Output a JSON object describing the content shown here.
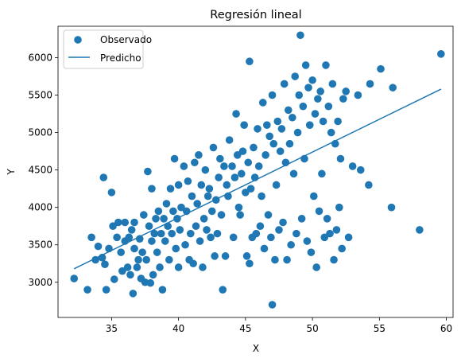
{
  "chart_data": {
    "type": "scatter",
    "title": "Regresión lineal",
    "xlabel": "X",
    "ylabel": "Y",
    "xlim": [
      31.0,
      60.5
    ],
    "ylim": [
      2530,
      6420
    ],
    "xticks": [
      35,
      40,
      45,
      50,
      55,
      60
    ],
    "yticks": [
      3000,
      3500,
      4000,
      4500,
      5000,
      5500,
      6000
    ],
    "grid": false,
    "legend_placement": "top-left",
    "colors": {
      "series": "#1f77b4"
    },
    "series": [
      {
        "name": "Observado",
        "type": "scatter",
        "points": [
          [
            32.2,
            3050
          ],
          [
            33.2,
            2900
          ],
          [
            33.5,
            3600
          ],
          [
            33.8,
            3300
          ],
          [
            34.0,
            3480
          ],
          [
            34.3,
            3330
          ],
          [
            34.5,
            3240
          ],
          [
            34.4,
            4400
          ],
          [
            34.6,
            2900
          ],
          [
            34.8,
            3450
          ],
          [
            35.0,
            4200
          ],
          [
            35.1,
            3750
          ],
          [
            35.2,
            3040
          ],
          [
            35.4,
            3600
          ],
          [
            35.5,
            3800
          ],
          [
            35.7,
            3400
          ],
          [
            35.8,
            3150
          ],
          [
            36.0,
            3550
          ],
          [
            36.0,
            3800
          ],
          [
            36.2,
            3200
          ],
          [
            36.3,
            3600
          ],
          [
            36.4,
            3100
          ],
          [
            36.5,
            3700
          ],
          [
            36.6,
            2850
          ],
          [
            36.7,
            3450
          ],
          [
            36.7,
            3800
          ],
          [
            36.9,
            3200
          ],
          [
            37.0,
            3300
          ],
          [
            37.1,
            3580
          ],
          [
            37.2,
            3050
          ],
          [
            37.3,
            3400
          ],
          [
            37.4,
            3900
          ],
          [
            37.5,
            3000
          ],
          [
            37.6,
            3300
          ],
          [
            37.7,
            4480
          ],
          [
            37.8,
            3750
          ],
          [
            37.9,
            2990
          ],
          [
            38.0,
            3550
          ],
          [
            38.0,
            4250
          ],
          [
            38.1,
            3100
          ],
          [
            38.2,
            3650
          ],
          [
            38.3,
            3850
          ],
          [
            38.4,
            3400
          ],
          [
            38.5,
            3950
          ],
          [
            38.6,
            3200
          ],
          [
            38.7,
            3650
          ],
          [
            38.8,
            2900
          ],
          [
            38.9,
            3850
          ],
          [
            39.0,
            3550
          ],
          [
            39.1,
            4050
          ],
          [
            39.2,
            3750
          ],
          [
            39.3,
            3300
          ],
          [
            39.4,
            4250
          ],
          [
            39.5,
            3650
          ],
          [
            39.6,
            3950
          ],
          [
            39.7,
            4650
          ],
          [
            39.8,
            3450
          ],
          [
            39.9,
            3850
          ],
          [
            40.0,
            4300
          ],
          [
            40.0,
            3200
          ],
          [
            40.1,
            3700
          ],
          [
            40.2,
            4000
          ],
          [
            40.4,
            4550
          ],
          [
            40.5,
            3500
          ],
          [
            40.6,
            3950
          ],
          [
            40.7,
            4350
          ],
          [
            40.8,
            3300
          ],
          [
            40.9,
            3650
          ],
          [
            41.0,
            4150
          ],
          [
            41.1,
            3250
          ],
          [
            41.2,
            4600
          ],
          [
            41.3,
            3750
          ],
          [
            41.4,
            4050
          ],
          [
            41.5,
            4700
          ],
          [
            41.6,
            3550
          ],
          [
            41.7,
            4300
          ],
          [
            41.8,
            3200
          ],
          [
            41.9,
            3850
          ],
          [
            42.0,
            4500
          ],
          [
            42.1,
            3700
          ],
          [
            42.2,
            4150
          ],
          [
            42.3,
            4250
          ],
          [
            42.4,
            3600
          ],
          [
            42.5,
            3950
          ],
          [
            42.6,
            4800
          ],
          [
            42.7,
            3350
          ],
          [
            42.8,
            4100
          ],
          [
            42.9,
            3650
          ],
          [
            43.0,
            4400
          ],
          [
            43.1,
            4650
          ],
          [
            43.2,
            3900
          ],
          [
            43.3,
            2900
          ],
          [
            43.4,
            4550
          ],
          [
            43.5,
            3350
          ],
          [
            43.6,
            4300
          ],
          [
            43.7,
            4150
          ],
          [
            43.8,
            4900
          ],
          [
            44.0,
            4550
          ],
          [
            44.1,
            3600
          ],
          [
            44.2,
            4400
          ],
          [
            44.3,
            5250
          ],
          [
            44.4,
            4700
          ],
          [
            44.5,
            4000
          ],
          [
            44.6,
            3900
          ],
          [
            44.7,
            4450
          ],
          [
            44.8,
            4750
          ],
          [
            44.9,
            5100
          ],
          [
            45.0,
            4200
          ],
          [
            45.1,
            3350
          ],
          [
            45.2,
            4600
          ],
          [
            45.3,
            5950
          ],
          [
            45.3,
            3250
          ],
          [
            45.4,
            4250
          ],
          [
            45.5,
            3600
          ],
          [
            45.6,
            4800
          ],
          [
            45.7,
            4400
          ],
          [
            45.8,
            3650
          ],
          [
            45.9,
            5050
          ],
          [
            46.0,
            4550
          ],
          [
            46.1,
            3750
          ],
          [
            46.2,
            4150
          ],
          [
            46.3,
            5400
          ],
          [
            46.4,
            3450
          ],
          [
            46.5,
            4700
          ],
          [
            46.6,
            5100
          ],
          [
            46.7,
            3900
          ],
          [
            46.8,
            4950
          ],
          [
            46.9,
            3600
          ],
          [
            47.0,
            2700
          ],
          [
            47.0,
            5500
          ],
          [
            47.1,
            4850
          ],
          [
            47.2,
            3300
          ],
          [
            47.3,
            4300
          ],
          [
            47.4,
            5150
          ],
          [
            47.5,
            3700
          ],
          [
            47.6,
            4750
          ],
          [
            47.7,
            5050
          ],
          [
            47.8,
            3800
          ],
          [
            47.9,
            5650
          ],
          [
            48.0,
            4600
          ],
          [
            48.1,
            3300
          ],
          [
            48.2,
            5300
          ],
          [
            48.3,
            4850
          ],
          [
            48.4,
            3500
          ],
          [
            48.5,
            5200
          ],
          [
            48.6,
            4450
          ],
          [
            48.7,
            5750
          ],
          [
            48.8,
            3650
          ],
          [
            48.9,
            5000
          ],
          [
            49.0,
            5500
          ],
          [
            49.1,
            6300
          ],
          [
            49.2,
            3850
          ],
          [
            49.3,
            5350
          ],
          [
            49.4,
            4650
          ],
          [
            49.5,
            5900
          ],
          [
            49.6,
            3550
          ],
          [
            49.7,
            5600
          ],
          [
            49.8,
            5100
          ],
          [
            49.9,
            3400
          ],
          [
            50.0,
            5700
          ],
          [
            50.1,
            4150
          ],
          [
            50.2,
            5250
          ],
          [
            50.3,
            3200
          ],
          [
            50.4,
            5450
          ],
          [
            50.5,
            3950
          ],
          [
            50.6,
            5550
          ],
          [
            50.7,
            4450
          ],
          [
            50.8,
            5150
          ],
          [
            50.9,
            3600
          ],
          [
            51.0,
            5900
          ],
          [
            51.1,
            3850
          ],
          [
            51.2,
            5350
          ],
          [
            51.3,
            3650
          ],
          [
            51.4,
            5000
          ],
          [
            51.5,
            5650
          ],
          [
            51.6,
            3300
          ],
          [
            51.7,
            4850
          ],
          [
            51.8,
            3700
          ],
          [
            51.9,
            5150
          ],
          [
            52.0,
            4000
          ],
          [
            52.1,
            4650
          ],
          [
            52.2,
            3450
          ],
          [
            52.3,
            5450
          ],
          [
            52.5,
            5550
          ],
          [
            52.7,
            3600
          ],
          [
            53.0,
            4550
          ],
          [
            53.4,
            5500
          ],
          [
            53.6,
            4500
          ],
          [
            54.2,
            4300
          ],
          [
            54.3,
            5650
          ],
          [
            55.1,
            5850
          ],
          [
            55.9,
            4000
          ],
          [
            56.0,
            5600
          ],
          [
            58.0,
            3700
          ],
          [
            59.6,
            6050
          ]
        ]
      },
      {
        "name": "Predicho",
        "type": "line",
        "x": [
          32.2,
          59.6
        ],
        "y": [
          3180,
          5580
        ]
      }
    ]
  }
}
